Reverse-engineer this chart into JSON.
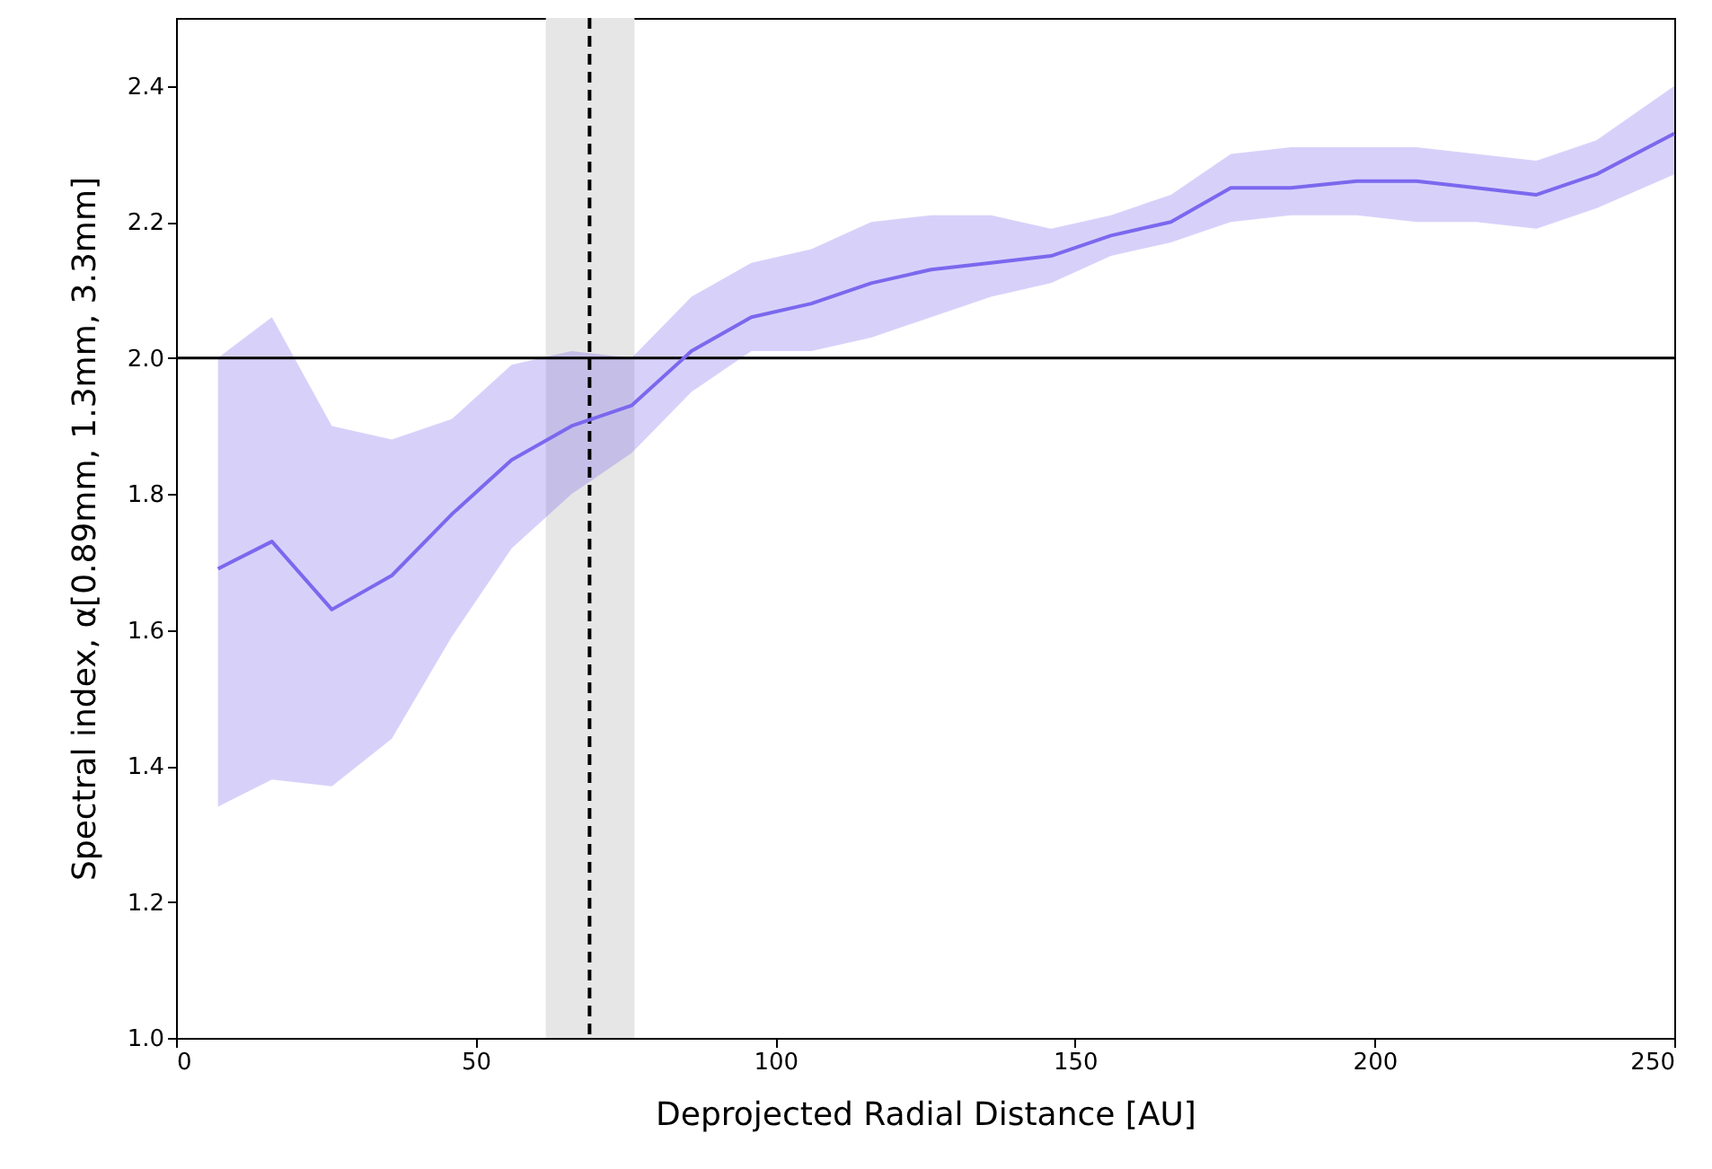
{
  "chart_data": {
    "type": "line",
    "xlabel": "Deprojected Radial Distance [AU]",
    "ylabel": "Spectral index, α[0.89mm, 1.3mm, 3.3mm]",
    "x": [
      7,
      16,
      26,
      36,
      46,
      56,
      66,
      76,
      86,
      96,
      106,
      116,
      126,
      136,
      146,
      156,
      166,
      176,
      186,
      197,
      207,
      217,
      227,
      237,
      250
    ],
    "series": [
      {
        "color": "#7b68ee",
        "values": [
          1.69,
          1.73,
          1.63,
          1.68,
          1.77,
          1.85,
          1.9,
          1.93,
          2.01,
          2.06,
          2.08,
          2.11,
          2.13,
          2.14,
          2.15,
          2.18,
          2.2,
          2.25,
          2.25,
          2.26,
          2.26,
          2.25,
          2.24,
          2.27,
          2.33
        ],
        "lower": [
          1.34,
          1.38,
          1.37,
          1.44,
          1.59,
          1.72,
          1.8,
          1.86,
          1.95,
          2.01,
          2.01,
          2.03,
          2.06,
          2.09,
          2.11,
          2.15,
          2.17,
          2.2,
          2.21,
          2.21,
          2.2,
          2.2,
          2.19,
          2.22,
          2.27
        ],
        "upper": [
          2.0,
          2.06,
          1.9,
          1.88,
          1.91,
          1.99,
          2.01,
          2.0,
          2.09,
          2.14,
          2.16,
          2.2,
          2.21,
          2.21,
          2.19,
          2.21,
          2.24,
          2.3,
          2.31,
          2.31,
          2.31,
          2.3,
          2.29,
          2.32,
          2.4
        ]
      }
    ],
    "xlim": [
      0,
      250
    ],
    "xticks": [
      0,
      50,
      100,
      150,
      200,
      250
    ],
    "ylim": [
      1.0,
      2.5
    ],
    "yticks": [
      {
        "value": 1.0,
        "label": "1.0"
      },
      1.2,
      1.4,
      1.6,
      1.8,
      {
        "value": 2.0,
        "label": "2.0"
      },
      2.2,
      2.4
    ],
    "ref_lines": [
      {
        "axis": "y",
        "value": 2.0,
        "color": "#000000",
        "line_style": "solid"
      },
      {
        "axis": "x",
        "value": 69,
        "color": "#000000",
        "line_style": "dashed"
      }
    ],
    "bands": [
      {
        "axis": "x",
        "from": 61.7,
        "to": 76.5,
        "color": "#e6e6e6"
      }
    ],
    "grid": false,
    "marker": "none",
    "line_style": "solid"
  }
}
